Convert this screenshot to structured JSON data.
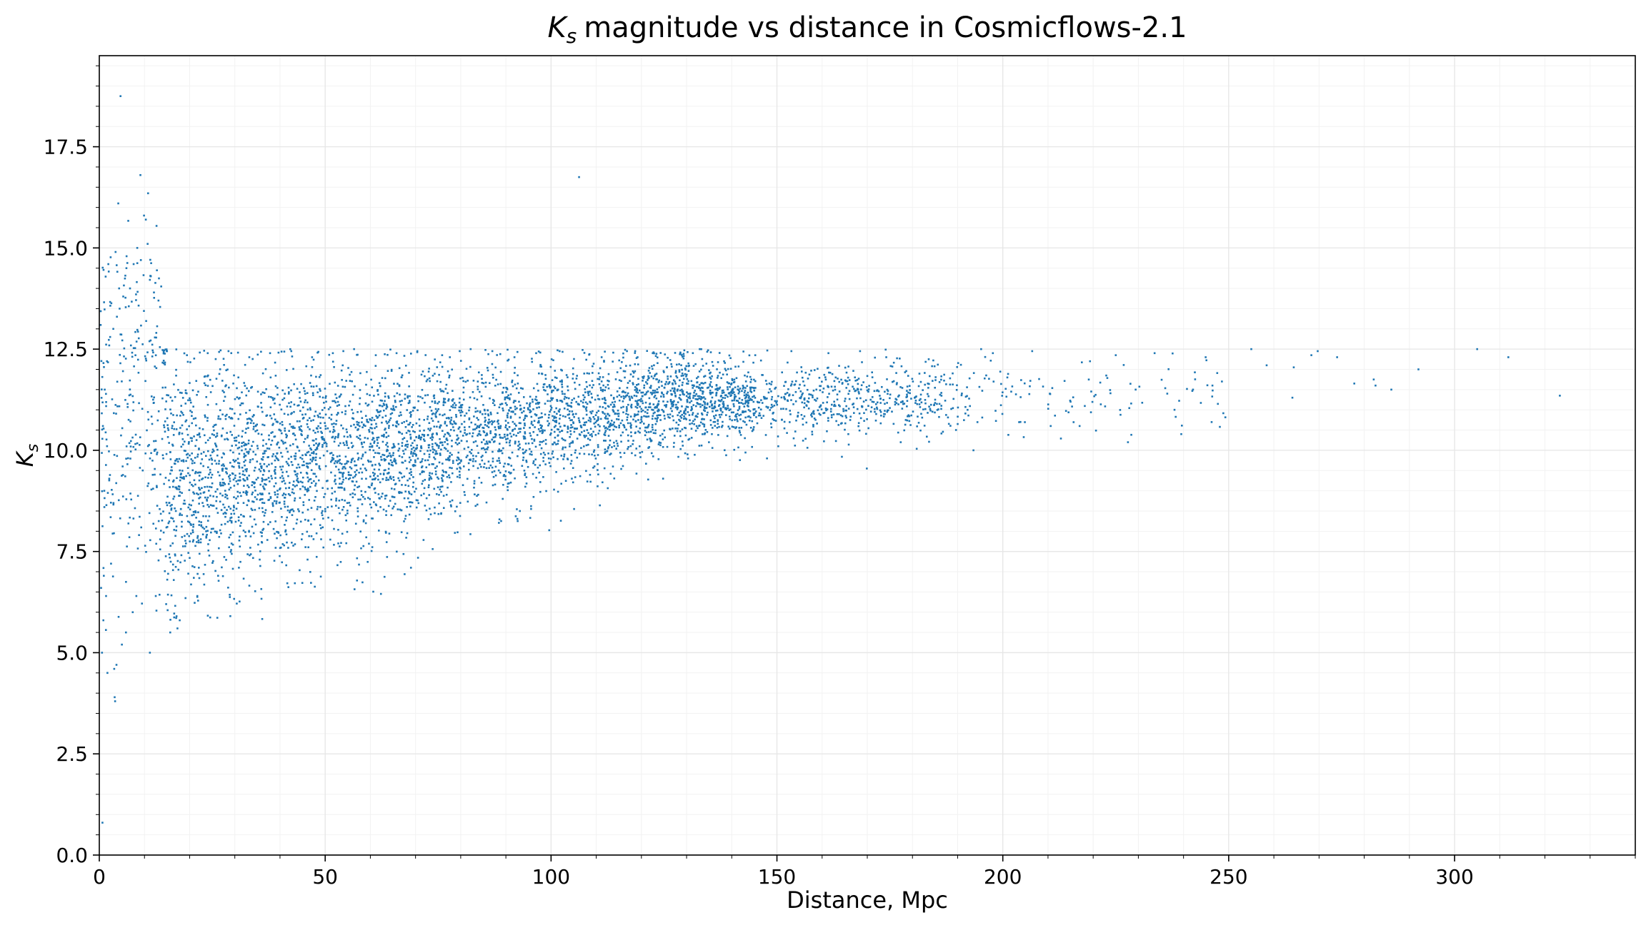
{
  "chart_data": {
    "type": "scatter",
    "title": "magnitude vs distance in Cosmicflows-2.1",
    "title_symbol": "K",
    "title_symbol_sub": "s",
    "xlabel": "Distance, Mpc",
    "ylabel_symbol": "K",
    "ylabel_symbol_sub": "s",
    "xlim": [
      0,
      340
    ],
    "ylim": [
      0,
      19.75
    ],
    "x_ticks": [
      0,
      50,
      100,
      150,
      200,
      250,
      300
    ],
    "x_tick_labels": [
      "0",
      "50",
      "100",
      "150",
      "200",
      "250",
      "300"
    ],
    "y_ticks": [
      0,
      2.5,
      5,
      7.5,
      10,
      12.5,
      15,
      17.5
    ],
    "y_tick_labels": [
      "0.0",
      "2.5",
      "5.0",
      "7.5",
      "10.0",
      "12.5",
      "15.0",
      "17.5"
    ],
    "grid": true,
    "minor_grid": true,
    "marker_color": "#1f77b4",
    "series": [
      {
        "points": [
          [
            4.7,
            18.75
          ],
          [
            106.2,
            16.75
          ],
          [
            9.1,
            16.8
          ],
          [
            10.8,
            16.35
          ],
          [
            4.2,
            16.1
          ],
          [
            9.9,
            15.8
          ],
          [
            10.3,
            15.7
          ],
          [
            2.0,
            14.6
          ],
          [
            3.6,
            14.9
          ],
          [
            1.0,
            6.9
          ],
          [
            0.4,
            6.6
          ],
          [
            1.5,
            6.4
          ],
          [
            0.9,
            5.8
          ],
          [
            0.6,
            5.0
          ],
          [
            1.8,
            4.5
          ],
          [
            3.3,
            4.6
          ],
          [
            3.8,
            4.7
          ],
          [
            3.4,
            3.9
          ],
          [
            3.5,
            3.8
          ],
          [
            0.7,
            0.8
          ],
          [
            11.2,
            5.0
          ],
          [
            5.0,
            5.2
          ],
          [
            5.9,
            5.5
          ],
          [
            15.7,
            5.5
          ],
          [
            17.3,
            5.6
          ],
          [
            17.8,
            5.8
          ],
          [
            7.4,
            6.0
          ],
          [
            8.2,
            6.4
          ],
          [
            2.6,
            7.2
          ],
          [
            52.9,
            7.7
          ],
          [
            46.1,
            7.3
          ],
          [
            105.1,
            8.55
          ],
          [
            93.1,
            8.5
          ],
          [
            169.9,
            9.55
          ],
          [
            193.5,
            10.0
          ],
          [
            210.6,
            10.6
          ],
          [
            227.7,
            10.2
          ],
          [
            239.5,
            10.4
          ],
          [
            255.0,
            12.5
          ],
          [
            258.4,
            12.1
          ],
          [
            264.1,
            11.3
          ],
          [
            264.4,
            12.05
          ],
          [
            268.3,
            12.35
          ],
          [
            269.7,
            12.45
          ],
          [
            274.0,
            12.3
          ],
          [
            277.8,
            11.65
          ],
          [
            282.1,
            11.75
          ],
          [
            282.5,
            11.6
          ],
          [
            286.0,
            11.5
          ],
          [
            292.0,
            12.0
          ],
          [
            305.0,
            12.5
          ],
          [
            311.9,
            12.3
          ],
          [
            323.3,
            11.35
          ],
          [
            248.5,
            11.7
          ],
          [
            246.4,
            11.6
          ],
          [
            244.9,
            12.3
          ],
          [
            242.1,
            11.5
          ],
          [
            236.4,
            11.4
          ],
          [
            233.6,
            12.4
          ],
          [
            225.0,
            12.35
          ],
          [
            229.4,
            11.5
          ],
          [
            219.3,
            12.2
          ],
          [
            217.0,
            10.6
          ],
          [
            215.0,
            11.2
          ],
          [
            210.4,
            11.4
          ],
          [
            206.5,
            12.45
          ],
          [
            203.9,
            10.7
          ],
          [
            201.0,
            11.8
          ],
          [
            197.8,
            12.4
          ],
          [
            195.2,
            12.5
          ],
          [
            192.2,
            11.0
          ],
          [
            188.9,
            11.9
          ],
          [
            186.4,
            11.1
          ],
          [
            183.6,
            12.25
          ],
          [
            180.1,
            11.7
          ],
          [
            177.4,
            10.2
          ],
          [
            174.2,
            12.3
          ],
          [
            171.1,
            11.2
          ],
          [
            168.4,
            12.45
          ],
          [
            165.8,
            10.4
          ],
          [
            163.0,
            11.8
          ],
          [
            161.4,
            12.4
          ],
          [
            158.2,
            10.9
          ],
          [
            156.1,
            11.6
          ],
          [
            153.2,
            12.45
          ],
          [
            150.3,
            10.1
          ],
          [
            147.8,
            9.8
          ],
          [
            145.2,
            12.35
          ],
          [
            142.9,
            10.3
          ],
          [
            140.1,
            11.5
          ],
          [
            138.3,
            12.2
          ],
          [
            135.6,
            10.4
          ],
          [
            132.9,
            12.5
          ],
          [
            130.2,
            9.9
          ],
          [
            127.4,
            11.7
          ],
          [
            124.8,
            9.3
          ],
          [
            122.5,
            12.4
          ],
          [
            119.6,
            10.1
          ],
          [
            116.8,
            12.45
          ],
          [
            113.7,
            9.6
          ],
          [
            111.2,
            12.3
          ],
          [
            108.4,
            9.9
          ],
          [
            104.6,
            9.3
          ],
          [
            101.9,
            12.45
          ],
          [
            99.5,
            9.8
          ],
          [
            96.7,
            12.4
          ],
          [
            94.3,
            9.1
          ],
          [
            91.9,
            12.3
          ],
          [
            89.3,
            8.8
          ],
          [
            87.0,
            12.45
          ],
          [
            84.6,
            9.2
          ],
          [
            82.2,
            12.5
          ],
          [
            79.9,
            8.7
          ],
          [
            77.6,
            12.3
          ],
          [
            75.2,
            8.9
          ],
          [
            72.9,
            8.3
          ],
          [
            70.4,
            12.45
          ],
          [
            68.1,
            8.6
          ],
          [
            65.8,
            12.4
          ],
          [
            63.5,
            8.4
          ],
          [
            61.2,
            12.35
          ],
          [
            58.8,
            8.8
          ],
          [
            56.4,
            12.5
          ],
          [
            54.1,
            8.6
          ],
          [
            51.7,
            12.4
          ],
          [
            49.4,
            8.5
          ],
          [
            47.1,
            12.3
          ],
          [
            44.8,
            7.8
          ],
          [
            42.5,
            12.45
          ],
          [
            40.1,
            7.9
          ],
          [
            37.8,
            12.4
          ],
          [
            35.5,
            7.3
          ],
          [
            33.2,
            12.3
          ],
          [
            30.9,
            7.1
          ],
          [
            28.6,
            12.45
          ],
          [
            26.3,
            6.9
          ],
          [
            24.0,
            12.4
          ],
          [
            21.7,
            6.4
          ],
          [
            19.4,
            12.35
          ],
          [
            17.1,
            5.9
          ],
          [
            14.8,
            6.2
          ],
          [
            12.5,
            6.4
          ],
          [
            13.1,
            13.7
          ],
          [
            12.1,
            13.9
          ],
          [
            11.4,
            14.3
          ],
          [
            10.7,
            15.1
          ],
          [
            9.2,
            14.7
          ],
          [
            8.4,
            15.0
          ],
          [
            7.6,
            14.6
          ],
          [
            6.8,
            14.0
          ],
          [
            6.0,
            14.5
          ],
          [
            5.3,
            13.8
          ],
          [
            4.5,
            13.5
          ],
          [
            3.9,
            13.3
          ],
          [
            3.1,
            13.0
          ],
          [
            2.4,
            12.8
          ],
          [
            1.7,
            12.2
          ],
          [
            1.2,
            11.5
          ],
          [
            0.8,
            10.6
          ],
          [
            1.1,
            9.0
          ]
        ]
      }
    ]
  }
}
